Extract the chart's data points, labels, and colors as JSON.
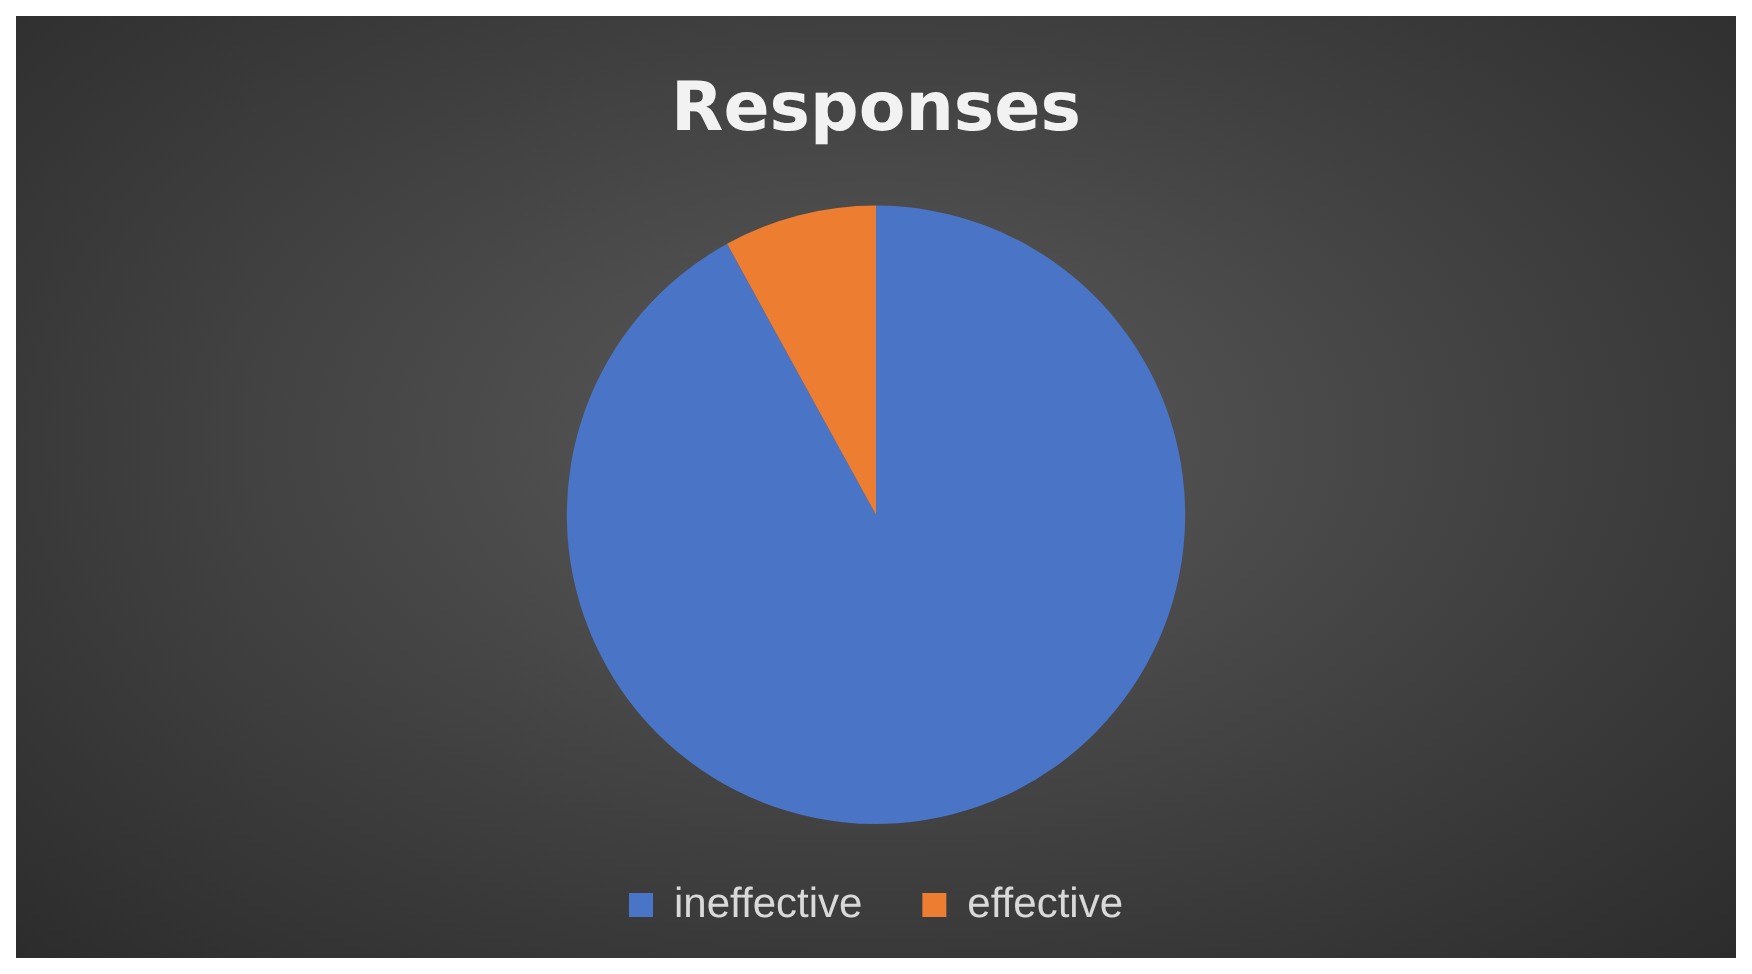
{
  "chart_data": {
    "type": "pie",
    "title": "Responses",
    "categories": [
      "ineffective",
      "effective"
    ],
    "values": [
      92,
      8
    ],
    "colors": [
      "#4a74c6",
      "#ed7d31"
    ],
    "legend": "bottom"
  }
}
